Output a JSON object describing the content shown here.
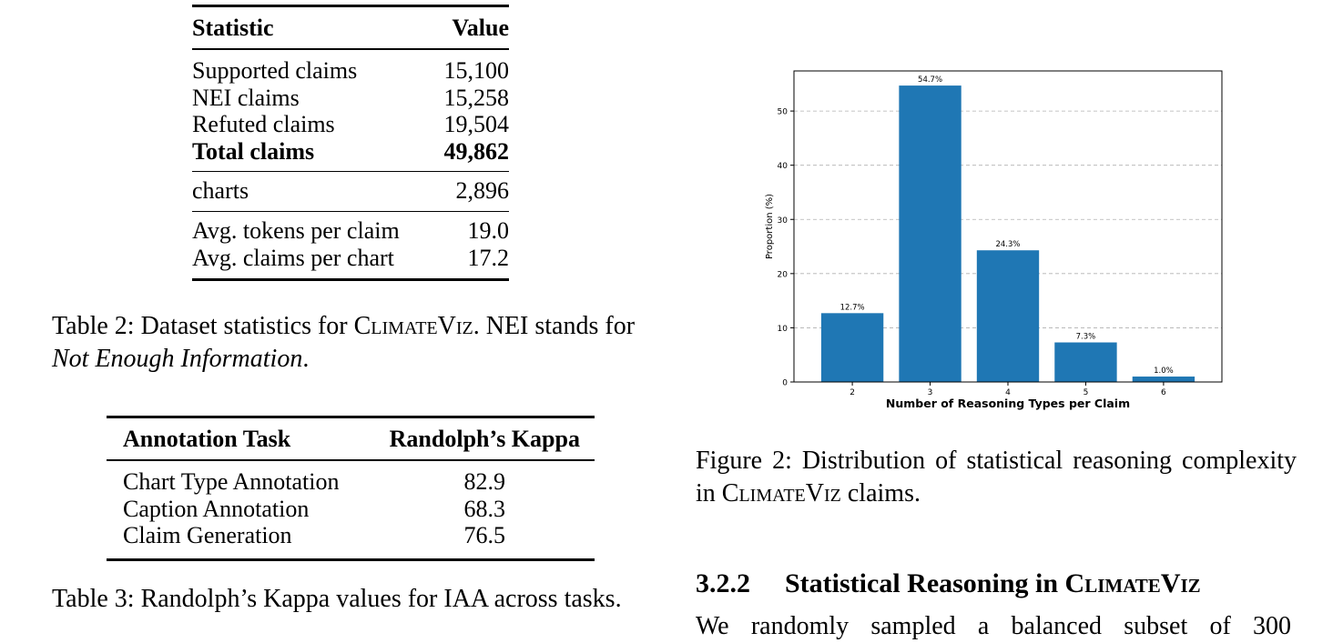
{
  "table2": {
    "header": {
      "col1": "Statistic",
      "col2": "Value"
    },
    "rows": [
      {
        "label": "Supported claims",
        "value": "15,100"
      },
      {
        "label": "NEI claims",
        "value": "15,258"
      },
      {
        "label": "Refuted claims",
        "value": "19,504"
      },
      {
        "label": "Total claims",
        "value": "49,862"
      },
      {
        "label": "charts",
        "value": "2,896"
      },
      {
        "label": "Avg. tokens per claim",
        "value": "19.0"
      },
      {
        "label": "Avg. claims per chart",
        "value": "17.2"
      }
    ],
    "caption": {
      "prefix": "Table 2: Dataset statistics for ",
      "name": "ClimateViz",
      "middle": ". NEI stands for ",
      "emph": "Not Enough Information",
      "suffix": "."
    }
  },
  "table3": {
    "header": {
      "col1": "Annotation Task",
      "col2": "Randolph’s Kappa"
    },
    "rows": [
      {
        "task": "Chart Type Annotation",
        "kappa": "82.9"
      },
      {
        "task": "Caption Annotation",
        "kappa": "68.3"
      },
      {
        "task": "Claim Generation",
        "kappa": "76.5"
      }
    ],
    "caption": "Table 3: Randolph’s Kappa values for IAA across tasks."
  },
  "figure": {
    "caption": {
      "prefix": "Figure 2: Distribution of statistical reasoning complexity in ",
      "name": "ClimateViz",
      "suffix": " claims."
    }
  },
  "chart_data": {
    "type": "bar",
    "categories": [
      "2",
      "3",
      "4",
      "5",
      "6"
    ],
    "values": [
      12.7,
      54.7,
      24.3,
      7.3,
      1.0
    ],
    "data_labels": [
      "12.7%",
      "54.7%",
      "24.3%",
      "7.3%",
      "1.0%"
    ],
    "title": "",
    "xlabel": "Number of Reasoning Types per Claim",
    "ylabel": "Proportion (%)",
    "yticks": [
      0,
      10,
      20,
      30,
      40,
      50
    ],
    "ylim": [
      0,
      57.4
    ],
    "grid": "y dashed",
    "bar_color": "#1f77b4"
  },
  "section": {
    "number": "3.2.2",
    "title_prefix": "Statistical Reasoning in ",
    "name": "ClimateViz"
  },
  "body": {
    "text": "We randomly sampled a balanced subset of 300"
  }
}
